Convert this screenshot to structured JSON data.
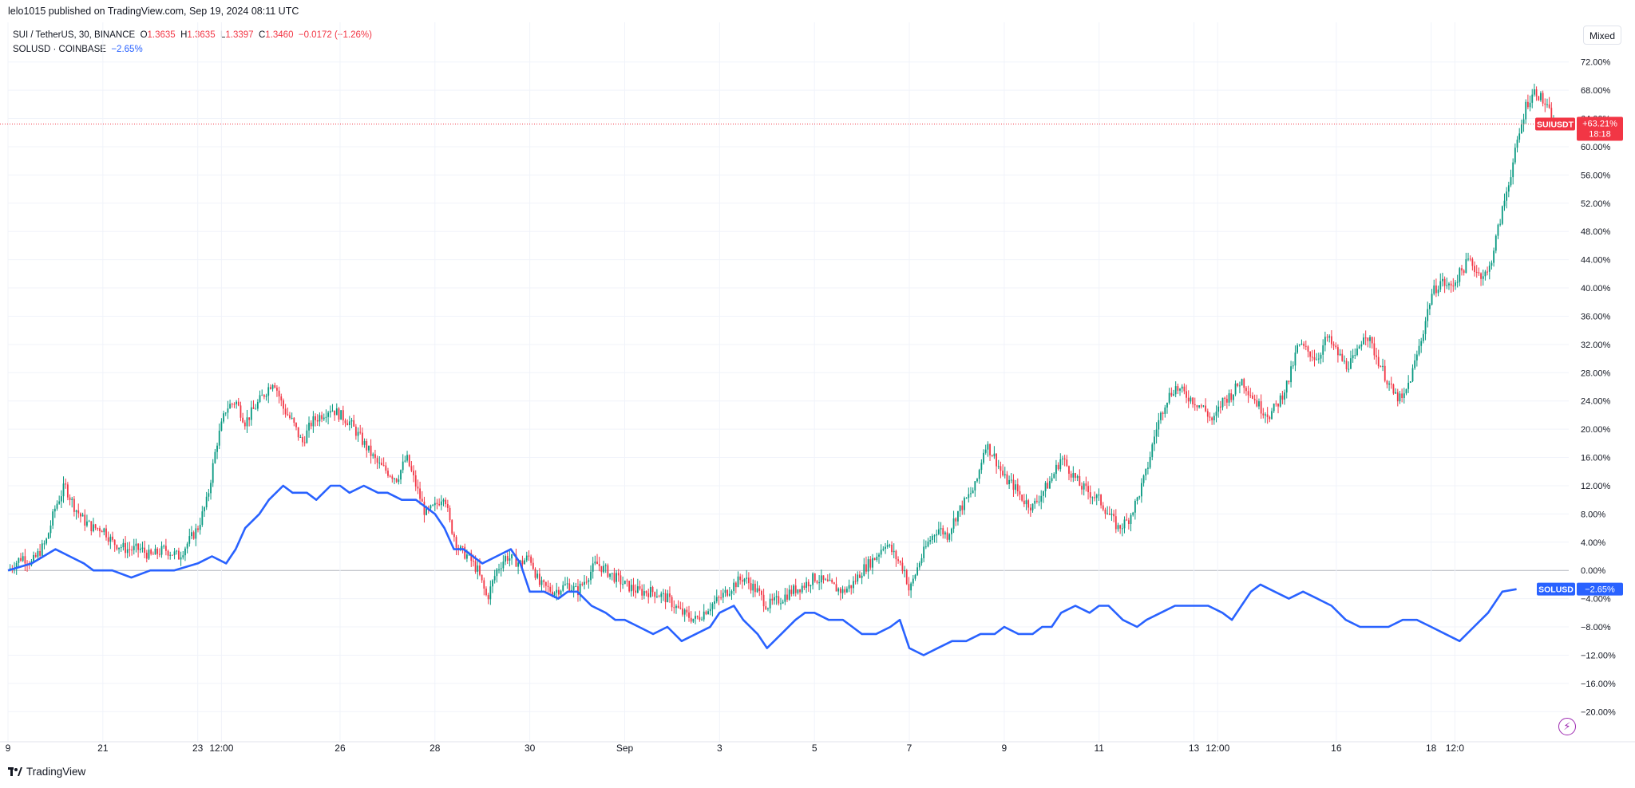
{
  "header": {
    "published_by": "lelo1015 published on TradingView.com, Sep 19, 2024 08:11 UTC"
  },
  "legend": {
    "sui": {
      "symbol": "SUI / TetherUS, 30, BINANCE",
      "o_label": "O",
      "o": "1.3635",
      "h_label": "H",
      "h": "1.3635",
      "l_label": "L",
      "l": "1.3397",
      "c_label": "C",
      "c": "1.3460",
      "change": "−0.0172 (−1.26%)"
    },
    "sol": {
      "symbol": "SOLUSD · COINBASE",
      "change": "−2.65%"
    }
  },
  "scale_button": "Mixed",
  "footer": {
    "brand": "TradingView"
  },
  "icons": {
    "lightning": "lightning-icon",
    "logo": "tradingview-logo-icon"
  },
  "colors": {
    "up": "#089981",
    "down": "#f23645",
    "sol": "#2962ff",
    "grid": "#f0f3fa",
    "zero": "#b2b5be"
  },
  "chart_data": {
    "type": "line",
    "yunit": "%",
    "y_ticks": [
      -20,
      -16,
      -12,
      -8,
      -4,
      0,
      4,
      8,
      12,
      16,
      20,
      24,
      28,
      32,
      36,
      40,
      44,
      48,
      52,
      56,
      60,
      64,
      68,
      72
    ],
    "y_tick_labels": [
      "−20.00%",
      "−16.00%",
      "−12.00%",
      "−8.00%",
      "−4.00%",
      "0.00%",
      "4.00%",
      "8.00%",
      "12.00%",
      "16.00%",
      "20.00%",
      "24.00%",
      "28.00%",
      "32.00%",
      "36.00%",
      "40.00%",
      "44.00%",
      "48.00%",
      "52.00%",
      "56.00%",
      "60.00%",
      "64.00%",
      "68.00%",
      "72.00%"
    ],
    "ylim": [
      -22,
      74
    ],
    "x_ticks": [
      {
        "label": "9",
        "day": 0
      },
      {
        "label": "21",
        "day": 2
      },
      {
        "label": "23",
        "day": 4
      },
      {
        "label": "12:00",
        "day": 4.5
      },
      {
        "label": "26",
        "day": 7
      },
      {
        "label": "28",
        "day": 9
      },
      {
        "label": "30",
        "day": 11
      },
      {
        "label": "Sep",
        "day": 13
      },
      {
        "label": "3",
        "day": 15
      },
      {
        "label": "5",
        "day": 17
      },
      {
        "label": "7",
        "day": 19
      },
      {
        "label": "9",
        "day": 21
      },
      {
        "label": "11",
        "day": 23
      },
      {
        "label": "13",
        "day": 25
      },
      {
        "label": "12:00",
        "day": 25.5
      },
      {
        "label": "16",
        "day": 28
      },
      {
        "label": "18",
        "day": 30
      },
      {
        "label": "12:0",
        "day": 30.5
      }
    ],
    "series": [
      {
        "name": "SUIUSDT",
        "kind": "candlestick",
        "last_label": "+63.21%",
        "countdown": "18:18",
        "last": 63.21,
        "points": [
          [
            0,
            0
          ],
          [
            0.3,
            2
          ],
          [
            0.5,
            1
          ],
          [
            0.8,
            4
          ],
          [
            1.0,
            9
          ],
          [
            1.2,
            12
          ],
          [
            1.4,
            9
          ],
          [
            1.6,
            7
          ],
          [
            1.8,
            6
          ],
          [
            2.0,
            6
          ],
          [
            2.2,
            4
          ],
          [
            2.5,
            3
          ],
          [
            2.8,
            3
          ],
          [
            3.0,
            2
          ],
          [
            3.3,
            3
          ],
          [
            3.6,
            2
          ],
          [
            3.8,
            4
          ],
          [
            4.0,
            6
          ],
          [
            4.2,
            10
          ],
          [
            4.4,
            18
          ],
          [
            4.6,
            23
          ],
          [
            4.8,
            24
          ],
          [
            5.0,
            21
          ],
          [
            5.2,
            23
          ],
          [
            5.4,
            25
          ],
          [
            5.6,
            27
          ],
          [
            5.8,
            23
          ],
          [
            6.0,
            21
          ],
          [
            6.2,
            18
          ],
          [
            6.4,
            21
          ],
          [
            6.6,
            22
          ],
          [
            6.8,
            23
          ],
          [
            7.0,
            22
          ],
          [
            7.2,
            21
          ],
          [
            7.4,
            19
          ],
          [
            7.6,
            17
          ],
          [
            7.8,
            15
          ],
          [
            8.0,
            14
          ],
          [
            8.2,
            13
          ],
          [
            8.4,
            16
          ],
          [
            8.6,
            12
          ],
          [
            8.8,
            8
          ],
          [
            9.0,
            9
          ],
          [
            9.2,
            11
          ],
          [
            9.3,
            7
          ],
          [
            9.5,
            3
          ],
          [
            9.7,
            2
          ],
          [
            9.9,
            0
          ],
          [
            10.1,
            -4
          ],
          [
            10.3,
            0
          ],
          [
            10.5,
            2
          ],
          [
            10.8,
            1
          ],
          [
            11.0,
            2
          ],
          [
            11.2,
            -2
          ],
          [
            11.5,
            -3
          ],
          [
            11.8,
            -2
          ],
          [
            12.0,
            -3
          ],
          [
            12.2,
            -1
          ],
          [
            12.4,
            1
          ],
          [
            12.6,
            0
          ],
          [
            12.8,
            -1
          ],
          [
            13.0,
            -2
          ],
          [
            13.3,
            -3
          ],
          [
            13.6,
            -3
          ],
          [
            13.9,
            -4
          ],
          [
            14.2,
            -6
          ],
          [
            14.5,
            -7
          ],
          [
            14.8,
            -5
          ],
          [
            15.0,
            -4
          ],
          [
            15.3,
            -2
          ],
          [
            15.5,
            -1
          ],
          [
            15.8,
            -3
          ],
          [
            16.0,
            -5
          ],
          [
            16.3,
            -4
          ],
          [
            16.5,
            -3
          ],
          [
            16.8,
            -2
          ],
          [
            17.0,
            -1
          ],
          [
            17.3,
            -2
          ],
          [
            17.6,
            -3
          ],
          [
            17.8,
            -2
          ],
          [
            18.0,
            0
          ],
          [
            18.3,
            2
          ],
          [
            18.5,
            4
          ],
          [
            18.7,
            2
          ],
          [
            18.9,
            0
          ],
          [
            19.0,
            -3
          ],
          [
            19.2,
            1
          ],
          [
            19.4,
            4
          ],
          [
            19.6,
            6
          ],
          [
            19.8,
            5
          ],
          [
            20.0,
            8
          ],
          [
            20.2,
            10
          ],
          [
            20.4,
            12
          ],
          [
            20.6,
            18
          ],
          [
            20.8,
            16
          ],
          [
            21.0,
            13
          ],
          [
            21.2,
            12
          ],
          [
            21.4,
            10
          ],
          [
            21.6,
            9
          ],
          [
            21.8,
            11
          ],
          [
            22.0,
            13
          ],
          [
            22.2,
            16
          ],
          [
            22.4,
            14
          ],
          [
            22.6,
            12
          ],
          [
            22.8,
            11
          ],
          [
            23.0,
            10
          ],
          [
            23.2,
            8
          ],
          [
            23.4,
            6
          ],
          [
            23.6,
            7
          ],
          [
            23.8,
            10
          ],
          [
            24.0,
            14
          ],
          [
            24.2,
            20
          ],
          [
            24.4,
            24
          ],
          [
            24.6,
            26
          ],
          [
            24.8,
            25
          ],
          [
            25.0,
            24
          ],
          [
            25.2,
            23
          ],
          [
            25.4,
            21
          ],
          [
            25.6,
            24
          ],
          [
            25.8,
            25
          ],
          [
            26.0,
            27
          ],
          [
            26.2,
            25
          ],
          [
            26.4,
            23
          ],
          [
            26.6,
            22
          ],
          [
            26.8,
            24
          ],
          [
            27.0,
            27
          ],
          [
            27.2,
            32
          ],
          [
            27.4,
            31
          ],
          [
            27.6,
            30
          ],
          [
            27.8,
            33
          ],
          [
            28.0,
            31
          ],
          [
            28.2,
            29
          ],
          [
            28.4,
            30
          ],
          [
            28.6,
            34
          ],
          [
            28.8,
            31
          ],
          [
            29.0,
            28
          ],
          [
            29.2,
            25
          ],
          [
            29.4,
            24
          ],
          [
            29.6,
            28
          ],
          [
            29.8,
            33
          ],
          [
            30.0,
            39
          ],
          [
            30.2,
            41
          ],
          [
            30.4,
            40
          ],
          [
            30.6,
            42
          ],
          [
            30.8,
            44
          ],
          [
            31.0,
            42
          ],
          [
            31.2,
            42
          ],
          [
            31.4,
            48
          ],
          [
            31.6,
            54
          ],
          [
            31.8,
            60
          ],
          [
            32.0,
            66
          ],
          [
            32.2,
            68
          ],
          [
            32.4,
            66
          ],
          [
            32.6,
            63.21
          ]
        ]
      },
      {
        "name": "SOLUSD",
        "kind": "line",
        "last_label": "−2.65%",
        "last": -2.65,
        "points": [
          [
            0,
            0
          ],
          [
            0.5,
            1
          ],
          [
            1.0,
            3
          ],
          [
            1.3,
            2
          ],
          [
            1.6,
            1
          ],
          [
            1.8,
            0
          ],
          [
            2.2,
            0
          ],
          [
            2.6,
            -1
          ],
          [
            3.0,
            0
          ],
          [
            3.5,
            0
          ],
          [
            4.0,
            1
          ],
          [
            4.3,
            2
          ],
          [
            4.6,
            1
          ],
          [
            4.8,
            3
          ],
          [
            5.0,
            6
          ],
          [
            5.3,
            8
          ],
          [
            5.5,
            10
          ],
          [
            5.8,
            12
          ],
          [
            6.0,
            11
          ],
          [
            6.3,
            11
          ],
          [
            6.5,
            10
          ],
          [
            6.8,
            12
          ],
          [
            7.0,
            12
          ],
          [
            7.2,
            11
          ],
          [
            7.5,
            12
          ],
          [
            7.8,
            11
          ],
          [
            8.0,
            11
          ],
          [
            8.3,
            10
          ],
          [
            8.6,
            10
          ],
          [
            8.8,
            9
          ],
          [
            9.0,
            8
          ],
          [
            9.2,
            6
          ],
          [
            9.4,
            3
          ],
          [
            9.6,
            3
          ],
          [
            9.8,
            2
          ],
          [
            10.0,
            1
          ],
          [
            10.3,
            2
          ],
          [
            10.6,
            3
          ],
          [
            10.8,
            1
          ],
          [
            11.0,
            -3
          ],
          [
            11.3,
            -3
          ],
          [
            11.6,
            -4
          ],
          [
            11.8,
            -3
          ],
          [
            12.0,
            -3
          ],
          [
            12.3,
            -5
          ],
          [
            12.6,
            -6
          ],
          [
            12.8,
            -7
          ],
          [
            13.0,
            -7
          ],
          [
            13.3,
            -8
          ],
          [
            13.6,
            -9
          ],
          [
            13.9,
            -8
          ],
          [
            14.2,
            -10
          ],
          [
            14.5,
            -9
          ],
          [
            14.8,
            -8
          ],
          [
            15.0,
            -6
          ],
          [
            15.3,
            -5
          ],
          [
            15.5,
            -7
          ],
          [
            15.8,
            -9
          ],
          [
            16.0,
            -11
          ],
          [
            16.3,
            -9
          ],
          [
            16.6,
            -7
          ],
          [
            16.8,
            -6
          ],
          [
            17.0,
            -6
          ],
          [
            17.3,
            -7
          ],
          [
            17.6,
            -7
          ],
          [
            17.8,
            -8
          ],
          [
            18.0,
            -9
          ],
          [
            18.3,
            -9
          ],
          [
            18.6,
            -8
          ],
          [
            18.8,
            -7
          ],
          [
            19.0,
            -11
          ],
          [
            19.3,
            -12
          ],
          [
            19.6,
            -11
          ],
          [
            19.9,
            -10
          ],
          [
            20.2,
            -10
          ],
          [
            20.5,
            -9
          ],
          [
            20.8,
            -9
          ],
          [
            21.0,
            -8
          ],
          [
            21.3,
            -9
          ],
          [
            21.6,
            -9
          ],
          [
            21.8,
            -8
          ],
          [
            22.0,
            -8
          ],
          [
            22.2,
            -6
          ],
          [
            22.5,
            -5
          ],
          [
            22.8,
            -6
          ],
          [
            23.0,
            -5
          ],
          [
            23.2,
            -5
          ],
          [
            23.5,
            -7
          ],
          [
            23.8,
            -8
          ],
          [
            24.0,
            -7
          ],
          [
            24.3,
            -6
          ],
          [
            24.6,
            -5
          ],
          [
            25.0,
            -5
          ],
          [
            25.3,
            -5
          ],
          [
            25.6,
            -6
          ],
          [
            25.8,
            -7
          ],
          [
            26.0,
            -5
          ],
          [
            26.2,
            -3
          ],
          [
            26.4,
            -2
          ],
          [
            26.7,
            -3
          ],
          [
            27.0,
            -4
          ],
          [
            27.3,
            -3
          ],
          [
            27.6,
            -4
          ],
          [
            27.9,
            -5
          ],
          [
            28.2,
            -7
          ],
          [
            28.5,
            -8
          ],
          [
            28.8,
            -8
          ],
          [
            29.1,
            -8
          ],
          [
            29.4,
            -7
          ],
          [
            29.7,
            -7
          ],
          [
            30.0,
            -8
          ],
          [
            30.3,
            -9
          ],
          [
            30.6,
            -10
          ],
          [
            30.9,
            -8
          ],
          [
            31.2,
            -6
          ],
          [
            31.5,
            -3
          ],
          [
            31.8,
            -2.65
          ]
        ]
      }
    ],
    "grid": true,
    "legend": "top-left"
  }
}
